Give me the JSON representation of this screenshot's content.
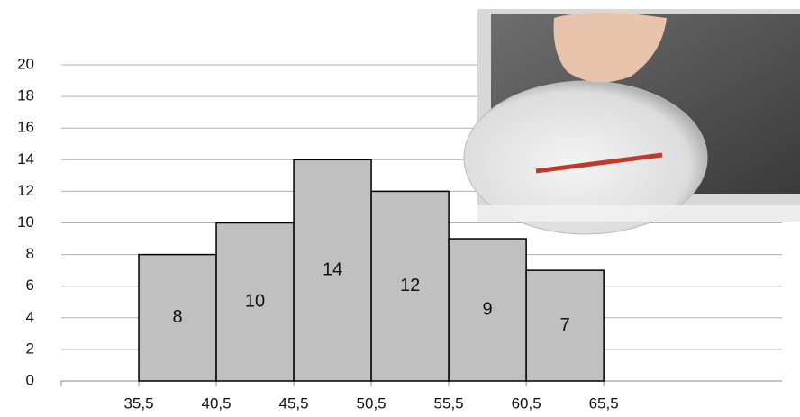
{
  "chart_data": {
    "type": "histogram",
    "bins": [
      35.5,
      40.5,
      45.5,
      50.5,
      55.5,
      60.5,
      65.5
    ],
    "values": [
      8,
      10,
      14,
      12,
      9,
      7
    ],
    "color": "#c0c0c0",
    "xlim": [
      30.5,
      77
    ],
    "xticks": [
      {
        "value": 35.5,
        "label": "35,5"
      },
      {
        "value": 40.5,
        "label": "40,5"
      },
      {
        "value": 45.5,
        "label": "45,5"
      },
      {
        "value": 50.5,
        "label": "50,5"
      },
      {
        "value": 55.5,
        "label": "55,5"
      },
      {
        "value": 60.5,
        "label": "60,5"
      },
      {
        "value": 65.5,
        "label": "65,5"
      }
    ],
    "ylim": [
      0,
      20
    ],
    "yticks": [
      0,
      2,
      4,
      6,
      8,
      10,
      12,
      14,
      16,
      18,
      20
    ],
    "grid": true
  }
}
